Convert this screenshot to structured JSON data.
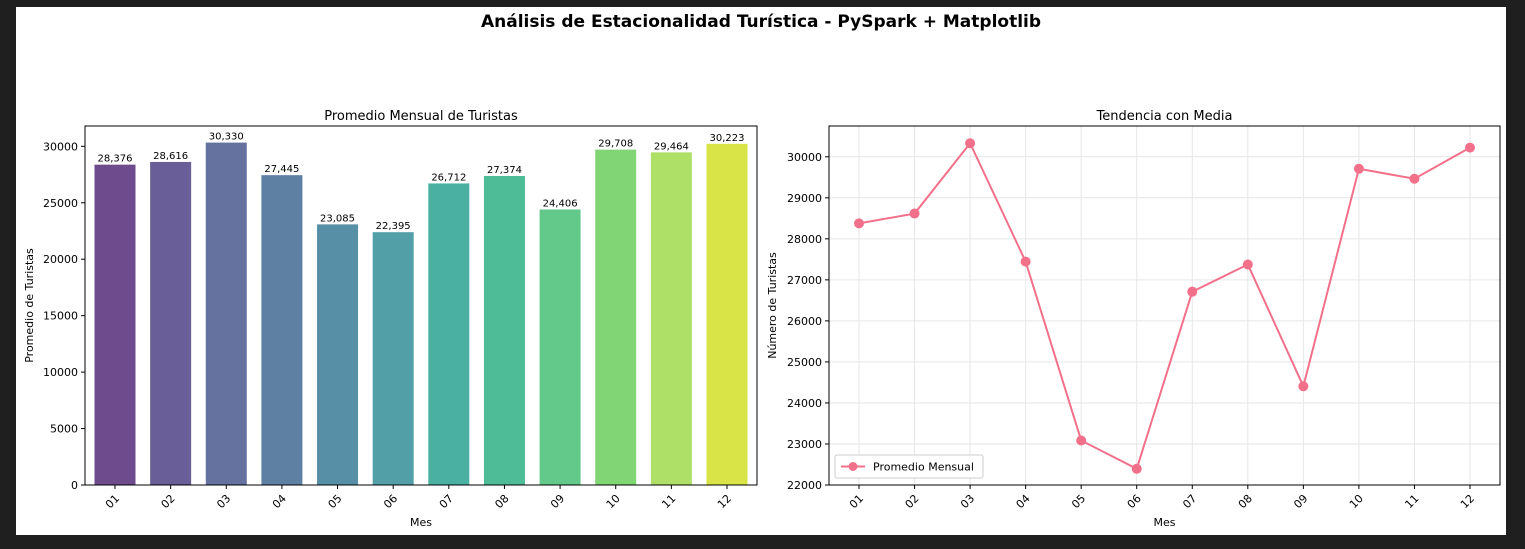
{
  "figure": {
    "suptitle": "Análisis de Estacionalidad Turística - PySpark + Matplotlib"
  },
  "chart_data": [
    {
      "type": "bar",
      "title": "Promedio Mensual de Turistas",
      "xlabel": "Mes",
      "ylabel": "Promedio de Turistas",
      "categories": [
        "01",
        "02",
        "03",
        "04",
        "05",
        "06",
        "07",
        "08",
        "09",
        "10",
        "11",
        "12"
      ],
      "values": [
        28376,
        28616,
        30330,
        27445,
        23085,
        22395,
        26712,
        27374,
        24406,
        29708,
        29464,
        30223
      ],
      "value_labels": [
        "28,376",
        "28,616",
        "30,330",
        "27,445",
        "23,085",
        "22,395",
        "26,712",
        "27,374",
        "24,406",
        "29,708",
        "29,464",
        "30,223"
      ],
      "colors": [
        "#6e4b8c",
        "#6a5e98",
        "#65719e",
        "#5e80a3",
        "#568fa6",
        "#529fa8",
        "#4ab0a2",
        "#4dbc97",
        "#63c98a",
        "#82d574",
        "#aedf67",
        "#d9e546"
      ],
      "ylim": [
        0,
        31800
      ],
      "yticks": [
        0,
        5000,
        10000,
        15000,
        20000,
        25000,
        30000
      ],
      "grid": false
    },
    {
      "type": "line",
      "title": "Tendencia con Media",
      "xlabel": "Mes",
      "ylabel": "Número de Turistas",
      "x": [
        "01",
        "02",
        "03",
        "04",
        "05",
        "06",
        "07",
        "08",
        "09",
        "10",
        "11",
        "12"
      ],
      "series": [
        {
          "name": "Promedio Mensual",
          "values": [
            28376,
            28616,
            30330,
            27445,
            23085,
            22395,
            26712,
            27374,
            24406,
            29708,
            29464,
            30223
          ],
          "color": "#f2708a",
          "marker": "circle"
        }
      ],
      "ylim": [
        22000,
        30750
      ],
      "yticks": [
        22000,
        23000,
        24000,
        25000,
        26000,
        27000,
        28000,
        29000,
        30000
      ],
      "grid": true,
      "legend_position": "bottom-left"
    }
  ]
}
